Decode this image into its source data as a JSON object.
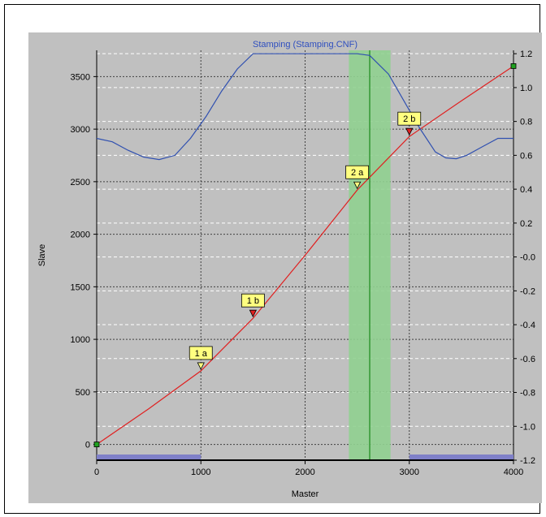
{
  "chart_data": {
    "type": "line",
    "title": "Stamping (Stamping.CNF)",
    "xlabel": "Master",
    "ylabel": "Slave",
    "xlim": [
      0,
      4000
    ],
    "ylim": [
      -150,
      3750
    ],
    "y2lim": [
      -1.2,
      1.22
    ],
    "xticks": [
      "0",
      "1000",
      "2000",
      "3000",
      "4000"
    ],
    "yticks": [
      "0",
      "500",
      "1000",
      "1500",
      "2000",
      "2500",
      "3000",
      "3500"
    ],
    "y2ticks": [
      "1.2",
      "1.0",
      "0.8",
      "0.6",
      "0.4",
      "0.2",
      "-0.0",
      "-0.2",
      "-0.4",
      "-0.6",
      "-0.8",
      "-1.0",
      "-1.2"
    ],
    "grid": true,
    "series": [
      {
        "axis": "left",
        "color": "#e02020",
        "points": [
          [
            0,
            0
          ],
          [
            500,
            340
          ],
          [
            1000,
            700
          ],
          [
            1500,
            1200
          ],
          [
            2000,
            1800
          ],
          [
            2500,
            2420
          ],
          [
            3000,
            2930
          ],
          [
            3500,
            3270
          ],
          [
            4000,
            3600
          ]
        ]
      },
      {
        "axis": "right",
        "color": "#3050b0",
        "points": [
          [
            0,
            0.7
          ],
          [
            150,
            0.68
          ],
          [
            300,
            0.63
          ],
          [
            450,
            0.59
          ],
          [
            600,
            0.575
          ],
          [
            750,
            0.6
          ],
          [
            900,
            0.7
          ],
          [
            1050,
            0.83
          ],
          [
            1200,
            0.98
          ],
          [
            1350,
            1.11
          ],
          [
            1500,
            1.2
          ],
          [
            1600,
            1.2
          ],
          [
            2000,
            1.2
          ],
          [
            2500,
            1.2
          ],
          [
            2620,
            1.19
          ],
          [
            2800,
            1.08
          ],
          [
            2950,
            0.92
          ],
          [
            3100,
            0.76
          ],
          [
            3250,
            0.62
          ],
          [
            3350,
            0.585
          ],
          [
            3450,
            0.58
          ],
          [
            3550,
            0.6
          ],
          [
            3700,
            0.65
          ],
          [
            3850,
            0.7
          ],
          [
            4000,
            0.7
          ]
        ]
      }
    ],
    "markers": [
      {
        "label": "1 a",
        "x": 1000,
        "y": 700,
        "color": "#ffff80"
      },
      {
        "label": "1 b",
        "x": 1500,
        "y": 1200,
        "color": "#e02020"
      },
      {
        "label": "2 a",
        "x": 2500,
        "y": 2420,
        "color": "#ffff80"
      },
      {
        "label": "2 b",
        "x": 3000,
        "y": 2930,
        "color": "#e02020"
      }
    ],
    "highlight_band": {
      "x_start": 2420,
      "x_end": 2820,
      "color": "#90d090"
    },
    "cursor_x": 2620,
    "bottom_segments": [
      [
        0,
        1000
      ],
      [
        3000,
        4000
      ]
    ],
    "colors": {
      "plot_bg": "#c0c0c0",
      "grid": "#ffffff",
      "curve_red": "#e02020",
      "curve_blue": "#3050b0"
    }
  }
}
